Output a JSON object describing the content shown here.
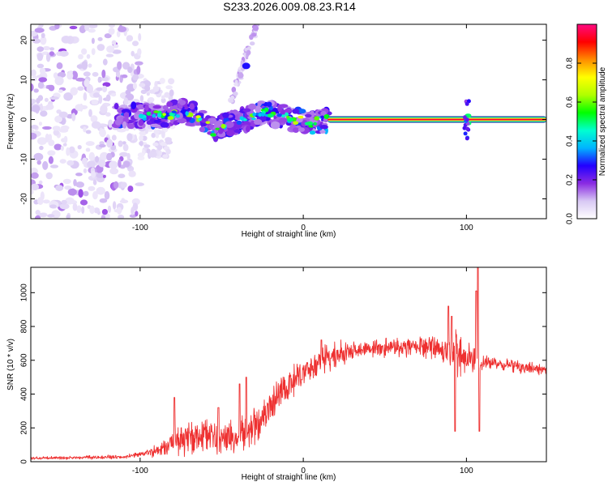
{
  "figure": {
    "title": "S233.2026.009.08.23.R14"
  },
  "chart_data": [
    {
      "type": "heatmap",
      "xlabel": "Height of straight line (km)",
      "ylabel": "Frequency (Hz)",
      "xlim": [
        -167,
        149
      ],
      "ylim": [
        -25,
        24
      ],
      "xticks": [
        -100,
        0,
        100
      ],
      "yticks": [
        -20,
        -10,
        0,
        10,
        20
      ],
      "colorbar": {
        "label": "Normalized spectral amplitude",
        "range": [
          0,
          1
        ],
        "ticks": [
          0.0,
          0.2,
          0.4,
          0.6,
          0.8
        ],
        "tick_labels": [
          "0.0",
          "0.2",
          "0.4",
          "0.6",
          "0.8"
        ],
        "colormap": [
          "#ffffff",
          "#d8c8f4",
          "#8a2be2",
          "#2200ff",
          "#00b4ff",
          "#00ffd0",
          "#00ff00",
          "#b0ff00",
          "#ffff00",
          "#ff8c00",
          "#ff0000",
          "#ff0a82"
        ]
      },
      "ridge": {
        "description_points_x": [
          -115,
          -100,
          -85,
          -75,
          -65,
          -55,
          -45,
          -35,
          -25,
          -15,
          -5,
          5,
          15,
          30,
          60,
          100,
          149
        ],
        "description_points_y": [
          1,
          1,
          1,
          2,
          1,
          -3,
          -1,
          0,
          2,
          1,
          0,
          -1,
          0,
          0,
          0,
          0,
          0
        ],
        "solid_band_x_range": [
          15,
          149
        ],
        "solid_band_level": 0.95
      },
      "blob_cluster": {
        "x_range": [
          -85,
          -30
        ],
        "y_range": [
          -5,
          4
        ]
      },
      "noise_field": {
        "x_range": [
          -167,
          -100
        ],
        "y_range": [
          -25,
          24
        ]
      },
      "upper_branch": {
        "x_range": [
          -45,
          -28
        ],
        "y_range": [
          4,
          24
        ]
      }
    },
    {
      "type": "line",
      "xlabel": "Height of straight line (km)",
      "ylabel": "SNR (10 * v/v)",
      "xlim": [
        -167,
        149
      ],
      "ylim": [
        0,
        1150
      ],
      "xticks": [
        -100,
        0,
        100
      ],
      "yticks": [
        0,
        200,
        400,
        600,
        800,
        1000
      ],
      "color": "#ee3030",
      "baseline": {
        "x": [
          -167,
          -130,
          -110,
          -90,
          -80,
          -60,
          -40,
          -25,
          -15,
          -5,
          5,
          15,
          25,
          40,
          60,
          80,
          90,
          100,
          105,
          108,
          115,
          130,
          149
        ],
        "y": [
          20,
          25,
          28,
          60,
          130,
          160,
          140,
          250,
          400,
          480,
          550,
          620,
          640,
          670,
          680,
          675,
          650,
          620,
          600,
          590,
          590,
          560,
          540
        ]
      },
      "noise_amplitude": {
        "x": [
          -167,
          -100,
          -88,
          -75,
          -20,
          -10,
          20,
          40,
          85,
          95,
          100,
          105,
          110,
          149
        ],
        "y": [
          8,
          12,
          40,
          90,
          110,
          90,
          70,
          50,
          60,
          160,
          80,
          90,
          40,
          30
        ]
      },
      "spikes": [
        {
          "x": -79,
          "y": 380
        },
        {
          "x": -52,
          "y": 320
        },
        {
          "x": -39,
          "y": 460
        },
        {
          "x": -35,
          "y": 500
        },
        {
          "x": 11,
          "y": 720
        },
        {
          "x": 89,
          "y": 920
        },
        {
          "x": 91,
          "y": 860
        },
        {
          "x": 93,
          "y": 180
        },
        {
          "x": 106,
          "y": 1010
        },
        {
          "x": 107,
          "y": 1150
        },
        {
          "x": 108,
          "y": 180
        }
      ]
    }
  ]
}
